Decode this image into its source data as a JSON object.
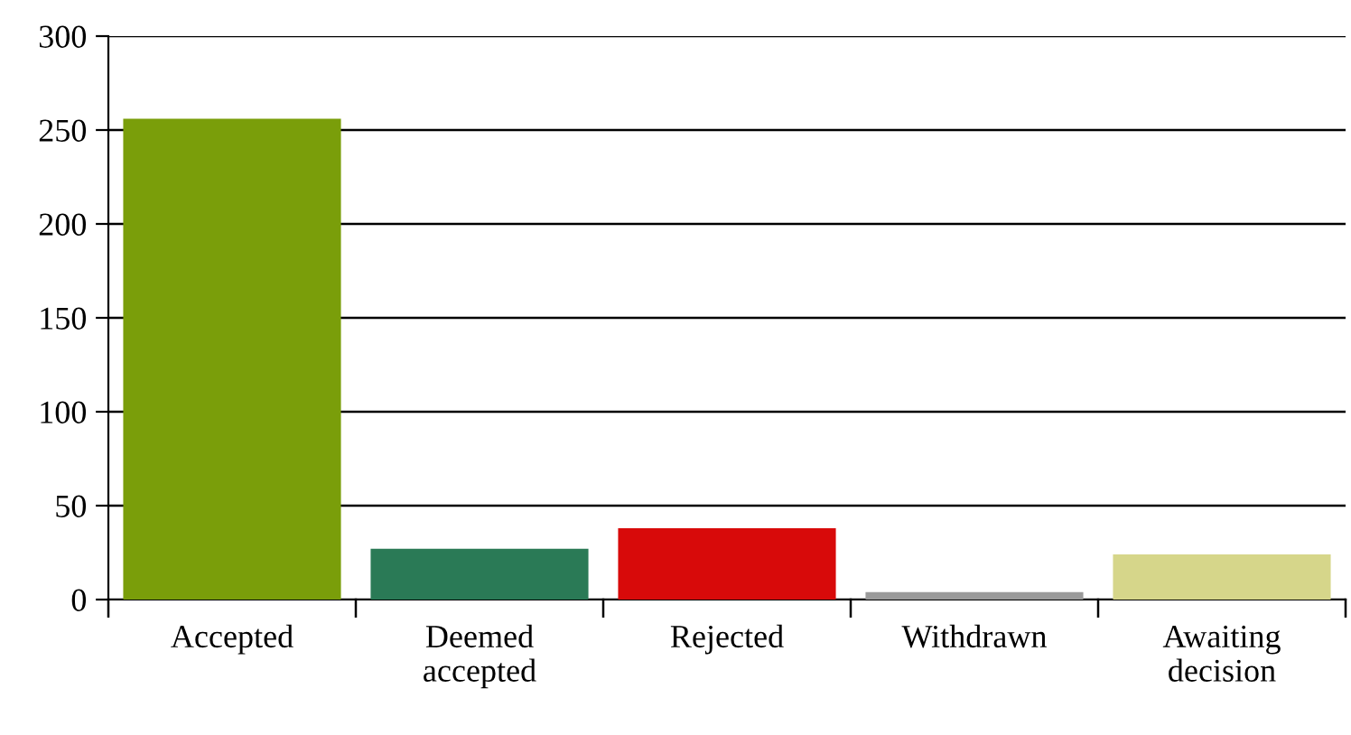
{
  "chart_data": {
    "type": "bar",
    "categories": [
      "Accepted",
      "Deemed\naccepted",
      "Rejected",
      "Withdrawn",
      "Awaiting\ndecision"
    ],
    "values": [
      256,
      27,
      38,
      4,
      24
    ],
    "colors": [
      "#7a9e0a",
      "#2a7a56",
      "#d80a0a",
      "#9a9a9a",
      "#d6d68a"
    ],
    "ylim": [
      0,
      300
    ],
    "yticks": [
      0,
      50,
      100,
      150,
      200,
      250,
      300
    ],
    "grid": "y",
    "legend": false
  }
}
